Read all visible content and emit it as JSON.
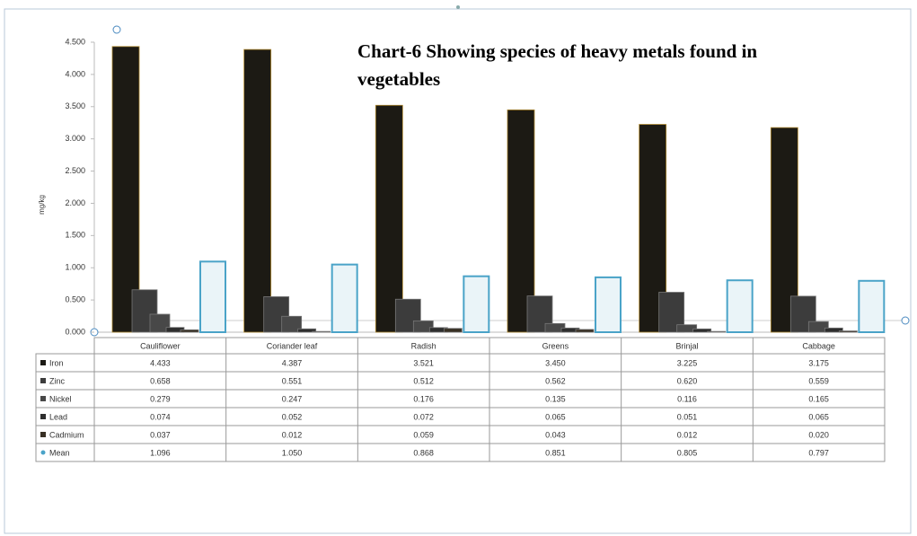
{
  "chart_data": {
    "type": "bar",
    "title_lines": [
      "Chart-6 Showing species of heavy metals found in",
      "vegetables"
    ],
    "y_label": "mg/kg",
    "categories": [
      "Cauliflower",
      "Coriander leaf",
      "Radish",
      "Greens",
      "Brinjal",
      "Cabbage"
    ],
    "series": [
      {
        "name": "Iron",
        "color": "#1c1a14",
        "values": [
          4.433,
          4.387,
          3.521,
          3.45,
          3.225,
          3.175
        ],
        "value_labels": [
          "4.433",
          "4.387",
          "3.521",
          "3.450",
          "3.225",
          "3.175"
        ]
      },
      {
        "name": "Zinc",
        "color": "#3c3c3c",
        "values": [
          0.658,
          0.551,
          0.512,
          0.562,
          0.62,
          0.559
        ],
        "value_labels": [
          "0.658",
          "0.551",
          "0.512",
          "0.562",
          "0.620",
          "0.559"
        ]
      },
      {
        "name": "Nickel",
        "color": "#484848",
        "values": [
          0.279,
          0.247,
          0.176,
          0.135,
          0.116,
          0.165
        ],
        "value_labels": [
          "0.279",
          "0.247",
          "0.176",
          "0.135",
          "0.116",
          "0.165"
        ]
      },
      {
        "name": "Lead",
        "color": "#2e2e2e",
        "values": [
          0.074,
          0.052,
          0.072,
          0.065,
          0.051,
          0.065
        ],
        "value_labels": [
          "0.074",
          "0.052",
          "0.072",
          "0.065",
          "0.051",
          "0.065"
        ]
      },
      {
        "name": "Cadmium",
        "color": "#383024",
        "values": [
          0.037,
          0.012,
          0.059,
          0.043,
          0.012,
          0.02
        ],
        "value_labels": [
          "0.037",
          "0.012",
          "0.059",
          "0.043",
          "0.012",
          "0.020"
        ]
      },
      {
        "name": "Mean",
        "color": "#4aa3c8",
        "values": [
          1.096,
          1.05,
          0.868,
          0.851,
          0.805,
          0.797
        ],
        "value_labels": [
          "1.096",
          "1.050",
          "0.868",
          "0.851",
          "0.805",
          "0.797"
        ]
      }
    ],
    "ylim": [
      0,
      4.5
    ],
    "yticks": [
      {
        "value": 0,
        "label": "0.000"
      },
      {
        "value": 0.5,
        "label": "0.500"
      },
      {
        "value": 1,
        "label": "1.000"
      },
      {
        "value": 1.5,
        "label": "1.500"
      },
      {
        "value": 2,
        "label": "2.000"
      },
      {
        "value": 2.5,
        "label": "2.500"
      },
      {
        "value": 3,
        "label": "3.000"
      },
      {
        "value": 3.5,
        "label": "3.500"
      },
      {
        "value": 4,
        "label": "4.000"
      },
      {
        "value": 4.5,
        "label": "4.500"
      }
    ]
  }
}
